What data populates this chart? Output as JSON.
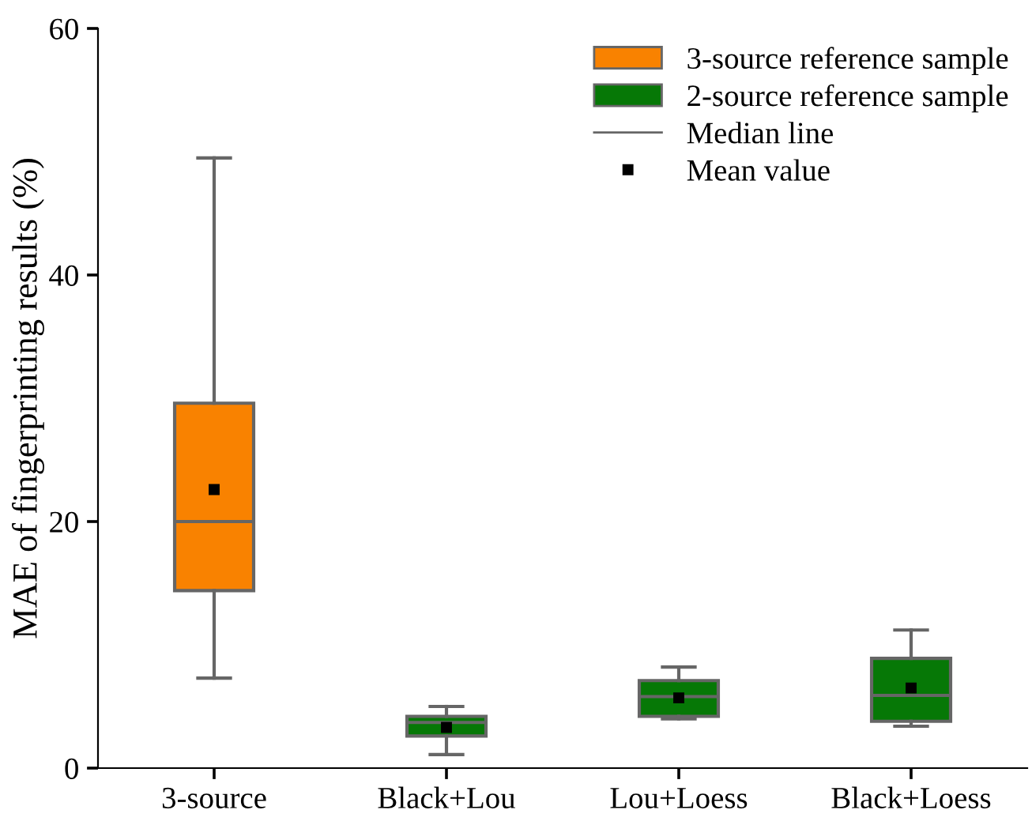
{
  "chart_data": {
    "type": "box",
    "ylabel": "MAE of fingerprinting results (%)",
    "categories": [
      "3-source",
      "Black+Lou",
      "Lou+Loess",
      "Black+Loess"
    ],
    "series": [
      {
        "name": "3-source reference sample",
        "color": "#f98200",
        "boxes": [
          {
            "low": 7.3,
            "q1": 14.4,
            "median": 20.0,
            "q3": 29.6,
            "high": 49.5,
            "mean": 22.6
          },
          null,
          null,
          null
        ]
      },
      {
        "name": "2-source reference sample",
        "color": "#067806",
        "boxes": [
          null,
          {
            "low": 1.1,
            "q1": 2.6,
            "median": 3.7,
            "q3": 4.2,
            "high": 5.0,
            "mean": 3.3
          },
          {
            "low": 4.0,
            "q1": 4.2,
            "median": 5.8,
            "q3": 7.1,
            "high": 8.2,
            "mean": 5.7
          },
          {
            "low": 3.4,
            "q1": 3.8,
            "median": 5.9,
            "q3": 8.9,
            "high": 11.2,
            "mean": 6.5
          }
        ]
      }
    ],
    "annotations": [
      "Median line",
      "Mean value"
    ],
    "ylim": [
      0,
      60
    ],
    "yticks": [
      0,
      20,
      40,
      60
    ],
    "grid": false,
    "legend": "top right",
    "marker": "square"
  }
}
